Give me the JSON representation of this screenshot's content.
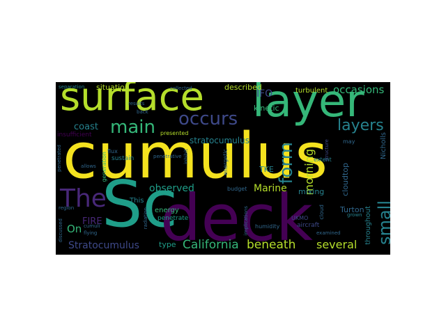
{
  "wordcloud": {
    "colors": {
      "background": "#000000",
      "yellow": "#f4e21f",
      "lime": "#b5de2b",
      "green": "#35b779",
      "teal": "#1f9e89",
      "sea": "#26828e",
      "blue": "#31688e",
      "indigo": "#3e4989",
      "purple": "#482878",
      "dark": "#440154"
    },
    "words": {
      "cumulus": "cumulus",
      "deck": "deck",
      "sc": "Sc",
      "surface": "surface",
      "layer": "layer",
      "the": "The",
      "occurs": "occurs",
      "form": "form",
      "main": "main",
      "small": "small",
      "layers": "layers",
      "occasions": "occasions",
      "stratocumulus_cap": "Stratocumulus",
      "stratocumulus": "stratocumulus",
      "california": "California",
      "beneath": "beneath",
      "several": "several",
      "marine": "Marine",
      "observed": "observed",
      "coast": "coast",
      "morning": "morning",
      "on": "On",
      "fire": "FIRE",
      "ifo": "IFO",
      "situation": "situation",
      "described": "described",
      "turbulent": "turbulent",
      "kinetic": "kinetic",
      "nicholls": "Nicholls",
      "turton": "Turton",
      "mixing": "mixing",
      "throughout": "throughout",
      "tke": "TKE",
      "cloudtop": "cloudtop",
      "type": "type",
      "this": "This",
      "energy": "energy",
      "penetrate": "penetrate",
      "ukmo": "UKMO",
      "aircraft": "aircraft",
      "humidity": "humidity",
      "cloud": "cloud",
      "grown": "grown",
      "budget": "budget",
      "energetic": "energetic",
      "extent": "extent",
      "structure": "structure",
      "may": "may",
      "examined": "examined",
      "separation": "separation",
      "collected": "collected",
      "results": "results",
      "back": "back",
      "insufficient": "insufficient",
      "presented": "presented",
      "penetrative": "penetrative",
      "flux": "flux",
      "generation": "generation",
      "sustain": "sustain",
      "allows": "allows",
      "penetrated": "penetrated",
      "region": "region",
      "discussed": "discussed",
      "cumuli": "cumuli",
      "flying": "flying",
      "radiation": "radiation",
      "implications": "implications",
      "inhibit": "inhibit"
    }
  }
}
